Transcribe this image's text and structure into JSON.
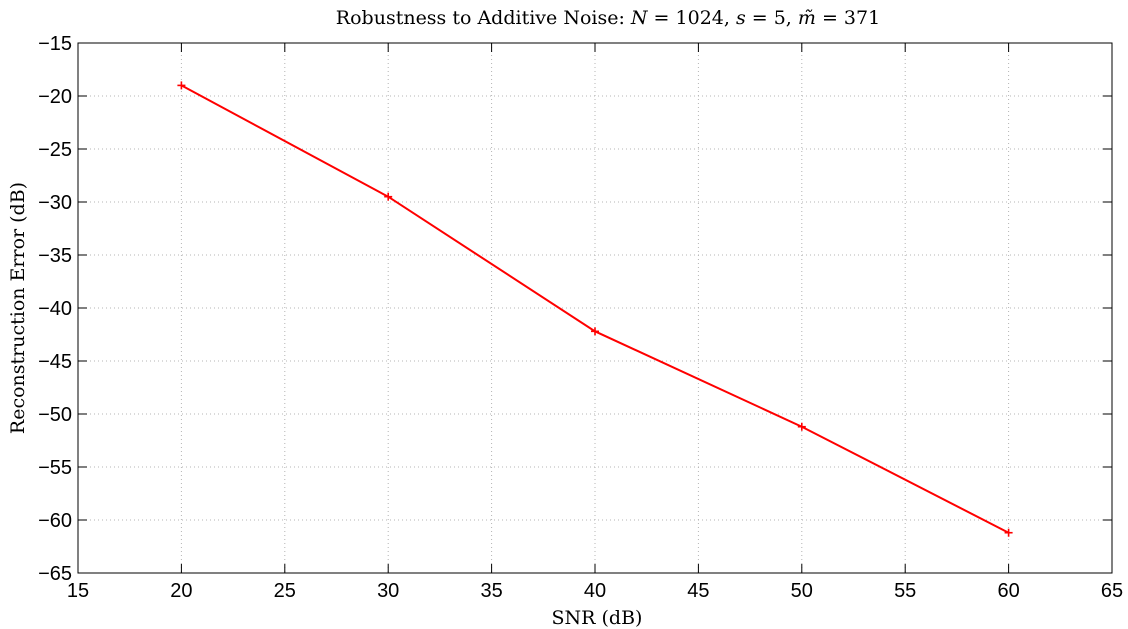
{
  "chart_data": {
    "type": "line",
    "title": "Robustness to Additive Noise: ",
    "title_math": [
      {
        "text": "N",
        "italic": true
      },
      {
        "text": " = 1024, ",
        "italic": false
      },
      {
        "text": "s",
        "italic": true
      },
      {
        "text": " = 5, ",
        "italic": false
      },
      {
        "text": "m̃",
        "italic": true
      },
      {
        "text": " = 371",
        "italic": false
      }
    ],
    "xlabel": "SNR (dB)",
    "ylabel": "Reconstruction Error (dB)",
    "xlim": [
      15,
      65
    ],
    "ylim": [
      -65,
      -15
    ],
    "xticks": [
      15,
      20,
      25,
      30,
      35,
      40,
      45,
      50,
      55,
      60,
      65
    ],
    "yticks": [
      -15,
      -20,
      -25,
      -30,
      -35,
      -40,
      -45,
      -50,
      -55,
      -60,
      -65
    ],
    "grid": true,
    "series": [
      {
        "color": "#ff0000",
        "marker": "plus",
        "x": [
          20,
          30,
          40,
          50,
          60
        ],
        "y": [
          -19.0,
          -29.5,
          -42.2,
          -51.2,
          -61.2
        ]
      }
    ]
  }
}
